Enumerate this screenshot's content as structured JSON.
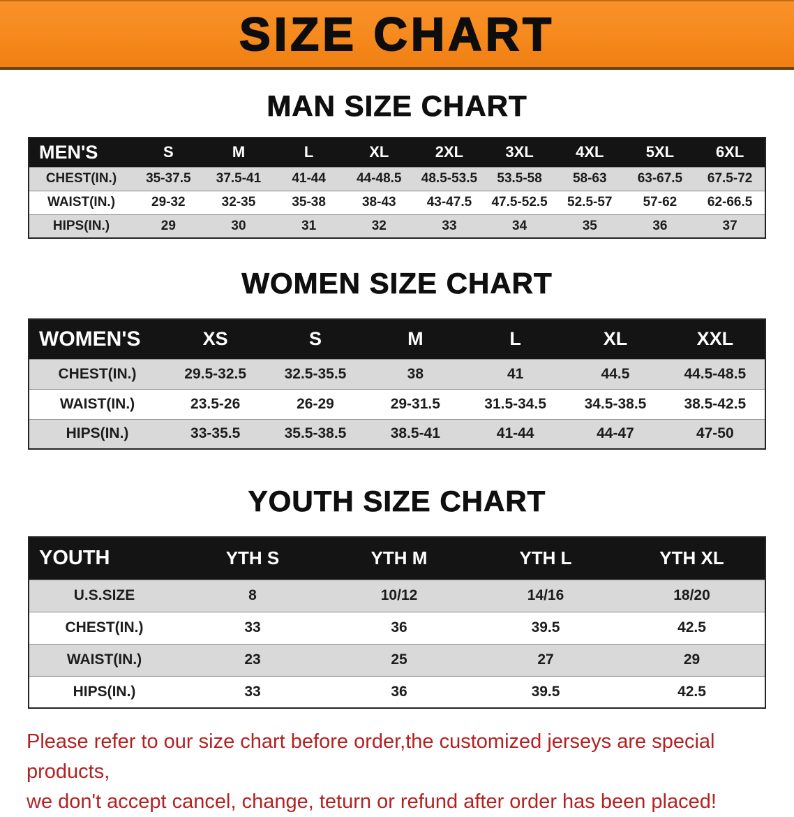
{
  "banner": {
    "title": "SIZE CHART",
    "bg_color": "#f6891d",
    "text_color": "#0d0d0d"
  },
  "sections": [
    {
      "heading": "MAN SIZE CHART",
      "table": {
        "label": "MEN'S",
        "columns": [
          "S",
          "M",
          "L",
          "XL",
          "2XL",
          "3XL",
          "4XL",
          "5XL",
          "6XL"
        ],
        "rows": [
          {
            "label": "CHEST(IN.)",
            "values": [
              "35-37.5",
              "37.5-41",
              "41-44",
              "44-48.5",
              "48.5-53.5",
              "53.5-58",
              "58-63",
              "63-67.5",
              "67.5-72"
            ]
          },
          {
            "label": "WAIST(IN.)",
            "values": [
              "29-32",
              "32-35",
              "35-38",
              "38-43",
              "43-47.5",
              "47.5-52.5",
              "52.5-57",
              "57-62",
              "62-66.5"
            ]
          },
          {
            "label": "HIPS(IN.)",
            "values": [
              "29",
              "30",
              "31",
              "32",
              "33",
              "34",
              "35",
              "36",
              "37"
            ]
          }
        ]
      }
    },
    {
      "heading": "WOMEN SIZE CHART",
      "table": {
        "label": "WOMEN'S",
        "columns": [
          "XS",
          "S",
          "M",
          "L",
          "XL",
          "XXL"
        ],
        "rows": [
          {
            "label": "CHEST(IN.)",
            "values": [
              "29.5-32.5",
              "32.5-35.5",
              "38",
              "41",
              "44.5",
              "44.5-48.5"
            ]
          },
          {
            "label": "WAIST(IN.)",
            "values": [
              "23.5-26",
              "26-29",
              "29-31.5",
              "31.5-34.5",
              "34.5-38.5",
              "38.5-42.5"
            ]
          },
          {
            "label": "HIPS(IN.)",
            "values": [
              "33-35.5",
              "35.5-38.5",
              "38.5-41",
              "41-44",
              "44-47",
              "47-50"
            ]
          }
        ]
      }
    },
    {
      "heading": "YOUTH SIZE CHART",
      "table": {
        "label": "YOUTH",
        "columns": [
          "YTH S",
          "YTH M",
          "YTH L",
          "YTH XL"
        ],
        "rows": [
          {
            "label": "U.S.SIZE",
            "values": [
              "8",
              "10/12",
              "14/16",
              "18/20"
            ]
          },
          {
            "label": "CHEST(IN.)",
            "values": [
              "33",
              "36",
              "39.5",
              "42.5"
            ]
          },
          {
            "label": "WAIST(IN.)",
            "values": [
              "23",
              "25",
              "27",
              "29"
            ]
          },
          {
            "label": "HIPS(IN.)",
            "values": [
              "33",
              "36",
              "39.5",
              "42.5"
            ]
          }
        ]
      }
    }
  ],
  "footer": {
    "line1": "Please refer to our size chart before order,the customized jerseys are special products,",
    "line2": "we don't accept cancel, change, teturn or refund after order has been placed!",
    "text_color": "#b22222"
  }
}
